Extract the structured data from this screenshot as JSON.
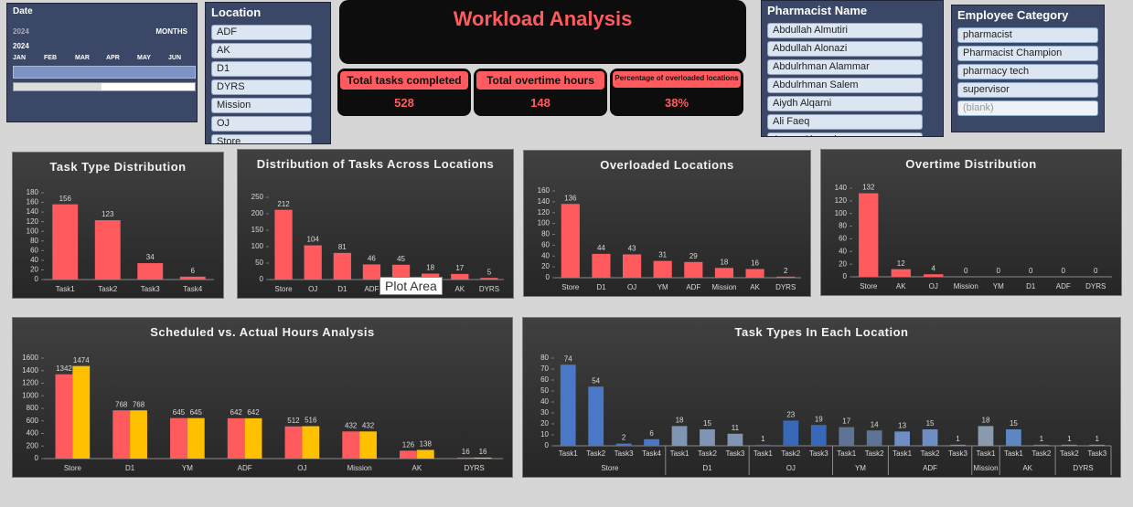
{
  "header": {
    "title": "Workload Analysis"
  },
  "date_slicer": {
    "title": "Date",
    "level": "MONTHS",
    "year_label": "2024",
    "year": "2024",
    "months": [
      "JAN",
      "FEB",
      "MAR",
      "APR",
      "MAY",
      "JUN"
    ]
  },
  "location_slicer": {
    "title": "Location",
    "items": [
      "ADF",
      "AK",
      "D1",
      "DYRS",
      "Mission",
      "OJ",
      "Store"
    ]
  },
  "pharmacist_slicer": {
    "title": "Pharmacist Name",
    "items": [
      "Abdullah Almutiri",
      "Abdullah Alonazi",
      "Abdulrhman Alammar",
      "Abdulrhman Salem",
      "Aiydh Alqarni",
      "Ali Faeq",
      "Anwar Alanazi"
    ]
  },
  "category_slicer": {
    "title": "Employee Category",
    "items": [
      "pharmacist",
      "Pharmacist Champion",
      "pharmacy tech",
      "supervisor",
      "(blank)"
    ]
  },
  "kpis": [
    {
      "label": "Total tasks completed",
      "value": 528
    },
    {
      "label": "Total overtime hours",
      "value": 148
    },
    {
      "label": "Percentage of overloaded locations",
      "value": "38%"
    }
  ],
  "tooltip": "Plot Area",
  "chart_data": [
    {
      "type": "bar",
      "title": "Task Type Distribution",
      "categories": [
        "Task1",
        "Task2",
        "Task3",
        "Task4"
      ],
      "values": [
        156,
        123,
        34,
        6
      ],
      "color": "#ff5b5f",
      "ylim": [
        0,
        180
      ],
      "yticks": [
        0,
        20,
        40,
        60,
        80,
        100,
        120,
        140,
        160,
        180
      ]
    },
    {
      "type": "bar",
      "title": "Distribution of Tasks Across Locations",
      "categories": [
        "Store",
        "OJ",
        "D1",
        "ADF",
        null,
        null,
        "AK",
        "DYRS"
      ],
      "values": [
        212,
        104,
        81,
        46,
        45,
        18,
        17,
        5
      ],
      "color": "#ff5b5f",
      "ylim": [
        0,
        250
      ],
      "yticks": [
        0,
        50,
        100,
        150,
        200,
        250
      ]
    },
    {
      "type": "bar",
      "title": "Overloaded Locations",
      "categories": [
        "Store",
        "D1",
        "OJ",
        "YM",
        "ADF",
        "Mission",
        "AK",
        "DYRS"
      ],
      "values": [
        136,
        44,
        43,
        31,
        29,
        18,
        16,
        2
      ],
      "color": "#ff5b5f",
      "ylim": [
        0,
        160
      ],
      "yticks": [
        0,
        20,
        40,
        60,
        80,
        100,
        120,
        140,
        160
      ]
    },
    {
      "type": "bar",
      "title": "Overtime Distribution",
      "categories": [
        "Store",
        "AK",
        "OJ",
        "Mission",
        "YM",
        "D1",
        "ADF",
        "DYRS"
      ],
      "values": [
        132,
        12,
        4,
        0,
        0,
        0,
        0,
        0
      ],
      "color": "#ff5b5f",
      "ylim": [
        0,
        140
      ],
      "yticks": [
        0,
        20,
        40,
        60,
        80,
        100,
        120,
        140
      ]
    },
    {
      "type": "bar",
      "title": "Scheduled vs. Actual Hours Analysis",
      "categories": [
        "Store",
        "D1",
        "YM",
        "ADF",
        "OJ",
        "Mission",
        "AK",
        "DYRS"
      ],
      "series": [
        {
          "color": "#ff5b5f",
          "values": [
            1342,
            768,
            645,
            642,
            512,
            432,
            126,
            16
          ]
        },
        {
          "color": "#ffc000",
          "values": [
            1474,
            768,
            645,
            642,
            516,
            432,
            138,
            16
          ]
        }
      ],
      "ylim": [
        0,
        1600
      ],
      "yticks": [
        0,
        200,
        400,
        600,
        800,
        1000,
        1200,
        1400,
        1600
      ]
    },
    {
      "type": "grouped_bar",
      "title": "Task Types In Each Location",
      "ylim": [
        0,
        80
      ],
      "yticks": [
        0,
        10,
        20,
        30,
        40,
        50,
        60,
        70,
        80
      ],
      "groups": [
        {
          "label": "Store",
          "color": "#4a78c9",
          "categories": [
            "Task1",
            "Task2",
            "Task3",
            "Task4"
          ],
          "values": [
            74,
            54,
            2,
            6
          ]
        },
        {
          "label": "D1",
          "color": "#7f95b3",
          "categories": [
            "Task1",
            "Task2",
            "Task3"
          ],
          "values": [
            18,
            15,
            11
          ]
        },
        {
          "label": "OJ",
          "color": "#3a68b8",
          "categories": [
            "Task1",
            "Task2",
            "Task3"
          ],
          "values": [
            1,
            23,
            19
          ]
        },
        {
          "label": "YM",
          "color": "#5f7494",
          "categories": [
            "Task1",
            "Task2"
          ],
          "values": [
            17,
            14
          ]
        },
        {
          "label": "ADF",
          "color": "#6f8fc4",
          "categories": [
            "Task1",
            "Task2",
            "Task3"
          ],
          "values": [
            13,
            15,
            1
          ]
        },
        {
          "label": "Mission",
          "color": "#8a9bb0",
          "categories": [
            "Task1"
          ],
          "values": [
            18
          ]
        },
        {
          "label": "AK",
          "color": "#5e86c0",
          "categories": [
            "Task1",
            "Task2"
          ],
          "values": [
            15,
            1
          ]
        },
        {
          "label": "DYRS",
          "color": "#7a90ad",
          "categories": [
            "Task2",
            "Task3"
          ],
          "values": [
            1,
            1
          ]
        }
      ]
    }
  ]
}
